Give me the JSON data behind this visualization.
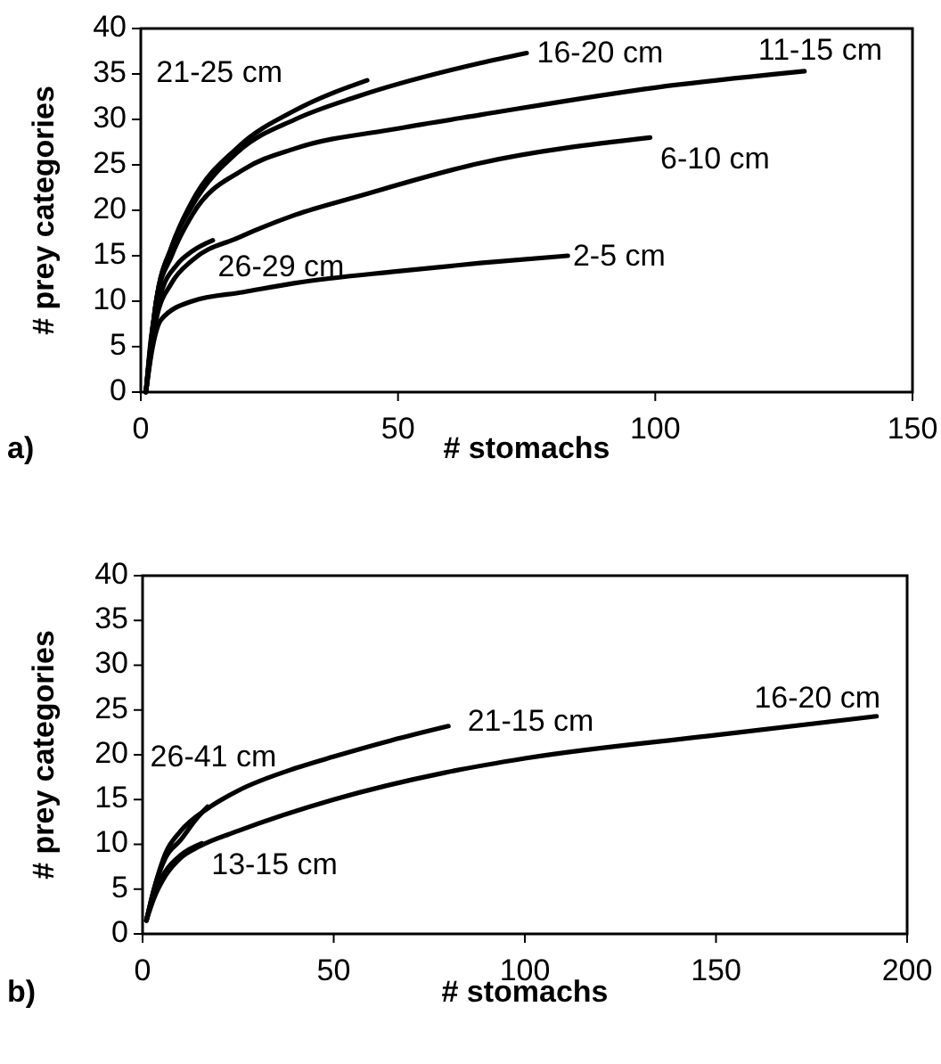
{
  "chart_data": [
    {
      "type": "line",
      "title": "a)",
      "xlabel": "# stomachs",
      "ylabel": "# prey categories",
      "xlim": [
        0,
        150
      ],
      "xticks": [
        0,
        50,
        100,
        150
      ],
      "ylim": [
        0,
        40
      ],
      "yticks": [
        0,
        5,
        10,
        15,
        20,
        25,
        30,
        35,
        40
      ],
      "grid": false,
      "legend": false,
      "marker": "none",
      "line_style": "solid",
      "series": [
        {
          "name": "21-25 cm",
          "color": "#000000",
          "x": [
            1,
            3,
            6,
            10,
            19,
            30,
            44
          ],
          "values": [
            0,
            10,
            16,
            21,
            27,
            31,
            34.3
          ]
        },
        {
          "name": "16-20 cm",
          "color": "#000000",
          "x": [
            1,
            3,
            6,
            10,
            19,
            30,
            42,
            66,
            75
          ],
          "values": [
            0,
            10,
            16,
            20.5,
            26.5,
            30,
            32.5,
            36.2,
            37.3
          ]
        },
        {
          "name": "11-15 cm",
          "color": "#000000",
          "x": [
            1,
            3,
            6,
            10,
            20,
            30,
            50,
            66,
            100,
            129
          ],
          "values": [
            0,
            10,
            15,
            19.5,
            24.5,
            26.8,
            29,
            30.5,
            33.5,
            35.3
          ]
        },
        {
          "name": "6-10 cm",
          "color": "#000000",
          "x": [
            1,
            3,
            6,
            10,
            19,
            30,
            42,
            66,
            99
          ],
          "values": [
            0,
            8,
            12,
            14.5,
            17,
            19.5,
            21.5,
            25.2,
            28
          ]
        },
        {
          "name": "2-5 cm",
          "color": "#000000",
          "x": [
            1,
            2,
            4,
            10,
            20,
            30,
            50,
            66,
            83
          ],
          "values": [
            0,
            4,
            8,
            10,
            11,
            12,
            13.3,
            14.2,
            15
          ]
        },
        {
          "name": "26-29 cm",
          "color": "#000000",
          "x": [
            1,
            2,
            4,
            7,
            10,
            14
          ],
          "values": [
            0,
            6,
            11,
            14,
            15.5,
            16.7
          ]
        }
      ]
    },
    {
      "type": "line",
      "title": "b)",
      "xlabel": "# stomachs",
      "ylabel": "# prey categories",
      "xlim": [
        0,
        200
      ],
      "xticks": [
        0,
        50,
        100,
        150,
        200
      ],
      "ylim": [
        0,
        40
      ],
      "yticks": [
        0,
        5,
        10,
        15,
        20,
        25,
        30,
        35,
        40
      ],
      "grid": false,
      "legend": false,
      "marker": "none",
      "line_style": "solid",
      "series": [
        {
          "name": "26-41 cm",
          "color": "#000000",
          "x": [
            1,
            3,
            6,
            10,
            14,
            17
          ],
          "values": [
            1.5,
            5,
            8.5,
            10.5,
            12.8,
            14.2
          ]
        },
        {
          "name": "21-15 cm",
          "color": "#000000",
          "x": [
            1,
            3,
            6,
            10,
            17,
            25,
            40,
            50,
            65,
            80
          ],
          "values": [
            1.5,
            5,
            9,
            11.5,
            14,
            16,
            18.5,
            19.8,
            21.6,
            23.2
          ]
        },
        {
          "name": "16-20 cm",
          "color": "#000000",
          "x": [
            1,
            3,
            6,
            10,
            15,
            25,
            50,
            79,
            100,
            150,
            192
          ],
          "values": [
            1.5,
            4,
            6.5,
            8.5,
            9.8,
            11.5,
            15,
            18,
            19.6,
            22.2,
            24.3
          ]
        },
        {
          "name": "13-15 cm",
          "color": "#000000",
          "x": [
            1,
            3,
            6,
            10,
            15.5
          ],
          "values": [
            1.5,
            4.5,
            7,
            8.8,
            10.1
          ]
        }
      ]
    }
  ]
}
